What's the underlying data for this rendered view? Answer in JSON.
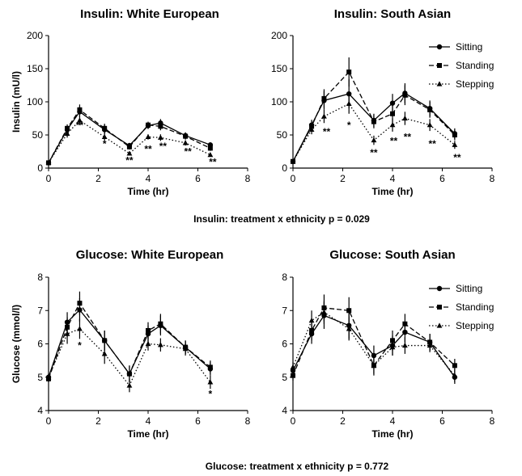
{
  "captions": {
    "insulin": "Insulin: treatment x ethnicity p = 0.029",
    "glucose": "Glucose: treatment x ethnicity p = 0.772"
  },
  "chart_data": [
    {
      "type": "line",
      "title": "Insulin: White European",
      "xlabel": "Time (hr)",
      "ylabel": "Insulin (mU/l)",
      "xlim": [
        0,
        8
      ],
      "ylim": [
        0,
        200
      ],
      "xticks": [
        0,
        2,
        4,
        6,
        8
      ],
      "yticks": [
        0,
        50,
        100,
        150,
        200
      ],
      "show_legend": false,
      "x": [
        0,
        0.75,
        1.25,
        2.25,
        3.25,
        4,
        4.5,
        5.5,
        6.5
      ],
      "series": [
        {
          "name": "Sitting",
          "line": "solid",
          "marker": "circle",
          "values": [
            8,
            58,
            85,
            58,
            34,
            64,
            68,
            49,
            35
          ],
          "errors": [
            3,
            6,
            8,
            7,
            4,
            5,
            6,
            5,
            4
          ]
        },
        {
          "name": "Standing",
          "line": "dashed",
          "marker": "square",
          "values": [
            8,
            60,
            88,
            60,
            32,
            65,
            63,
            48,
            30
          ],
          "errors": [
            3,
            6,
            8,
            7,
            4,
            5,
            6,
            5,
            4
          ]
        },
        {
          "name": "Stepping",
          "line": "dotted",
          "marker": "triangle",
          "values": [
            8,
            52,
            72,
            47,
            22,
            47,
            46,
            38,
            20
          ],
          "errors": [
            3,
            6,
            7,
            6,
            3,
            4,
            5,
            4,
            3
          ]
        }
      ],
      "annotations": [
        {
          "x": 1.25,
          "y": 60,
          "text": "**"
        },
        {
          "x": 2.25,
          "y": 32,
          "text": "*"
        },
        {
          "x": 3.25,
          "y": 7,
          "text": "**"
        },
        {
          "x": 4,
          "y": 24,
          "text": "**"
        },
        {
          "x": 4.6,
          "y": 28,
          "text": "**"
        },
        {
          "x": 5.6,
          "y": 20,
          "text": "**"
        },
        {
          "x": 6.6,
          "y": 4,
          "text": "**"
        }
      ]
    },
    {
      "type": "line",
      "title": "Insulin: South Asian",
      "xlabel": "Time (hr)",
      "ylabel": "",
      "xlim": [
        0,
        8
      ],
      "ylim": [
        0,
        200
      ],
      "xticks": [
        0,
        2,
        4,
        6,
        8
      ],
      "yticks": [
        0,
        50,
        100,
        150,
        200
      ],
      "show_legend": true,
      "x": [
        0,
        0.75,
        1.25,
        2.25,
        3.25,
        4,
        4.5,
        5.5,
        6.5
      ],
      "series": [
        {
          "name": "Sitting",
          "line": "solid",
          "marker": "circle",
          "values": [
            10,
            65,
            102,
            112,
            72,
            98,
            113,
            90,
            52
          ],
          "errors": [
            3,
            8,
            14,
            22,
            10,
            14,
            15,
            12,
            8
          ]
        },
        {
          "name": "Standing",
          "line": "dashed",
          "marker": "square",
          "values": [
            10,
            63,
            105,
            145,
            70,
            82,
            110,
            88,
            50
          ],
          "errors": [
            3,
            8,
            14,
            22,
            10,
            14,
            15,
            12,
            8
          ]
        },
        {
          "name": "Stepping",
          "line": "dotted",
          "marker": "triangle",
          "values": [
            10,
            58,
            78,
            97,
            42,
            65,
            75,
            65,
            35
          ],
          "errors": [
            3,
            7,
            10,
            15,
            7,
            10,
            10,
            9,
            6
          ]
        }
      ],
      "annotations": [
        {
          "x": 1.35,
          "y": 50,
          "text": "**"
        },
        {
          "x": 2.25,
          "y": 60,
          "text": "*"
        },
        {
          "x": 3.25,
          "y": 18,
          "text": "**"
        },
        {
          "x": 4.05,
          "y": 36,
          "text": "**"
        },
        {
          "x": 4.6,
          "y": 42,
          "text": "**"
        },
        {
          "x": 5.6,
          "y": 32,
          "text": "**"
        },
        {
          "x": 6.6,
          "y": 11,
          "text": "**"
        }
      ]
    },
    {
      "type": "line",
      "title": "Glucose: White European",
      "xlabel": "Time (hr)",
      "ylabel": "Glucose (mmol/l)",
      "xlim": [
        0,
        8
      ],
      "ylim": [
        4,
        8
      ],
      "xticks": [
        0,
        2,
        4,
        6,
        8
      ],
      "yticks": [
        4,
        5,
        6,
        7,
        8
      ],
      "show_legend": false,
      "x": [
        0,
        0.75,
        1.25,
        2.25,
        3.25,
        4,
        4.5,
        5.5,
        6.5
      ],
      "series": [
        {
          "name": "Sitting",
          "line": "solid",
          "marker": "circle",
          "values": [
            5.0,
            6.65,
            7.02,
            6.1,
            5.1,
            6.3,
            6.55,
            5.9,
            5.25
          ],
          "errors": [
            0.1,
            0.3,
            0.35,
            0.3,
            0.25,
            0.25,
            0.3,
            0.2,
            0.2
          ]
        },
        {
          "name": "Standing",
          "line": "dashed",
          "marker": "square",
          "values": [
            4.95,
            6.5,
            7.22,
            6.1,
            5.1,
            6.4,
            6.6,
            5.9,
            5.3
          ],
          "errors": [
            0.1,
            0.3,
            0.35,
            0.3,
            0.25,
            0.25,
            0.3,
            0.2,
            0.2
          ]
        },
        {
          "name": "Stepping",
          "line": "dotted",
          "marker": "triangle",
          "values": [
            5.0,
            6.3,
            6.45,
            5.7,
            4.75,
            6.0,
            5.97,
            5.85,
            4.85
          ],
          "errors": [
            0.1,
            0.3,
            0.3,
            0.3,
            0.2,
            0.2,
            0.2,
            0.2,
            0.2
          ]
        }
      ],
      "annotations": [
        {
          "x": 1.25,
          "y": 5.85,
          "text": "*"
        },
        {
          "x": 6.5,
          "y": 4.4,
          "text": "*"
        }
      ]
    },
    {
      "type": "line",
      "title": "Glucose: South Asian",
      "xlabel": "Time (hr)",
      "ylabel": "",
      "xlim": [
        0,
        8
      ],
      "ylim": [
        4,
        8
      ],
      "xticks": [
        0,
        2,
        4,
        6,
        8
      ],
      "yticks": [
        4,
        5,
        6,
        7,
        8
      ],
      "show_legend": true,
      "x": [
        0,
        0.75,
        1.25,
        2.25,
        3.25,
        4,
        4.5,
        5.5,
        6.5
      ],
      "series": [
        {
          "name": "Sitting",
          "line": "solid",
          "marker": "circle",
          "values": [
            5.2,
            6.3,
            6.85,
            6.55,
            5.65,
            5.95,
            6.35,
            6.05,
            5.0
          ],
          "errors": [
            0.15,
            0.3,
            0.4,
            0.4,
            0.3,
            0.3,
            0.3,
            0.25,
            0.2
          ]
        },
        {
          "name": "Standing",
          "line": "dashed",
          "marker": "square",
          "values": [
            5.05,
            6.4,
            7.08,
            7.0,
            5.35,
            6.1,
            6.6,
            6.05,
            5.35
          ],
          "errors": [
            0.15,
            0.3,
            0.4,
            0.4,
            0.3,
            0.3,
            0.3,
            0.25,
            0.2
          ]
        },
        {
          "name": "Stepping",
          "line": "dotted",
          "marker": "triangle",
          "values": [
            5.3,
            6.7,
            6.95,
            6.45,
            5.35,
            5.9,
            5.95,
            5.95,
            5.05
          ],
          "errors": [
            0.15,
            0.3,
            0.35,
            0.35,
            0.25,
            0.25,
            0.25,
            0.2,
            0.2
          ]
        }
      ],
      "annotations": []
    }
  ]
}
